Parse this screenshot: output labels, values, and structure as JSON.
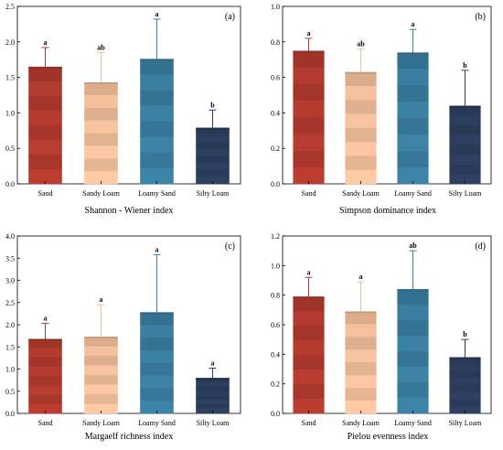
{
  "colors": {
    "Sand": "#b23a2e",
    "Sandy Loam": "#f3c09c",
    "Loamy Sand": "#3a7ea0",
    "Silty Loam": "#2c3e5e"
  },
  "chart_data": [
    {
      "type": "bar",
      "panel": "(a)",
      "xlabel": "Shannon - Wiener index",
      "ylabel": "",
      "categories": [
        "Sand",
        "Sandy Loam",
        "Loamy Sand",
        "Silty Loam"
      ],
      "values": [
        1.65,
        1.43,
        1.76,
        0.79
      ],
      "errors": [
        0.27,
        0.42,
        0.56,
        0.25
      ],
      "letters": [
        "a",
        "ab",
        "a",
        "b"
      ],
      "ylim": [
        0,
        2.5
      ],
      "yticks": [
        0.0,
        0.5,
        1.0,
        1.5,
        2.0,
        2.5
      ],
      "ytick_labels": [
        "0.0",
        "0.5",
        "1.0",
        "1.5",
        "2.0",
        "2.5"
      ]
    },
    {
      "type": "bar",
      "panel": "(b)",
      "xlabel": "Simpson dominance index",
      "ylabel": "",
      "categories": [
        "Sand",
        "Sandy Loam",
        "Loamy Sand",
        "Silty Loam"
      ],
      "values": [
        0.75,
        0.63,
        0.74,
        0.44
      ],
      "errors": [
        0.07,
        0.13,
        0.13,
        0.2
      ],
      "letters": [
        "a",
        "ab",
        "a",
        "b"
      ],
      "ylim": [
        0,
        1.0
      ],
      "yticks": [
        0.0,
        0.2,
        0.4,
        0.6,
        0.8,
        1.0
      ],
      "ytick_labels": [
        "0.0",
        "0.2",
        "0.4",
        "0.6",
        "0.8",
        "1.0"
      ]
    },
    {
      "type": "bar",
      "panel": "(c)",
      "xlabel": "Margaelf richness index",
      "ylabel": "",
      "categories": [
        "Sand",
        "Sandy Loam",
        "Loamy Sand",
        "Silty Loam"
      ],
      "values": [
        1.68,
        1.73,
        2.28,
        0.8
      ],
      "errors": [
        0.35,
        0.72,
        1.3,
        0.22
      ],
      "letters": [
        "a",
        "a",
        "a",
        "a"
      ],
      "ylim": [
        0,
        4.0
      ],
      "yticks": [
        0.0,
        0.5,
        1.0,
        1.5,
        2.0,
        2.5,
        3.0,
        3.5,
        4.0
      ],
      "ytick_labels": [
        "0.0",
        "0.5",
        "1.0",
        "1.5",
        "2.0",
        "2.5",
        "3.0",
        "3.5",
        "4.0"
      ]
    },
    {
      "type": "bar",
      "panel": "(d)",
      "xlabel": "Pielou evenness index",
      "ylabel": "",
      "categories": [
        "Sand",
        "Sandy Loam",
        "Loamy Sand",
        "Silty Loam"
      ],
      "values": [
        0.79,
        0.69,
        0.84,
        0.38
      ],
      "errors": [
        0.13,
        0.2,
        0.26,
        0.12
      ],
      "letters": [
        "a",
        "a",
        "ab",
        "b"
      ],
      "ylim": [
        0,
        1.2
      ],
      "yticks": [
        0.0,
        0.2,
        0.4,
        0.6,
        0.8,
        1.0,
        1.2
      ],
      "ytick_labels": [
        "0.0",
        "0.2",
        "0.4",
        "0.6",
        "0.8",
        "1.0",
        "1.2"
      ]
    }
  ]
}
